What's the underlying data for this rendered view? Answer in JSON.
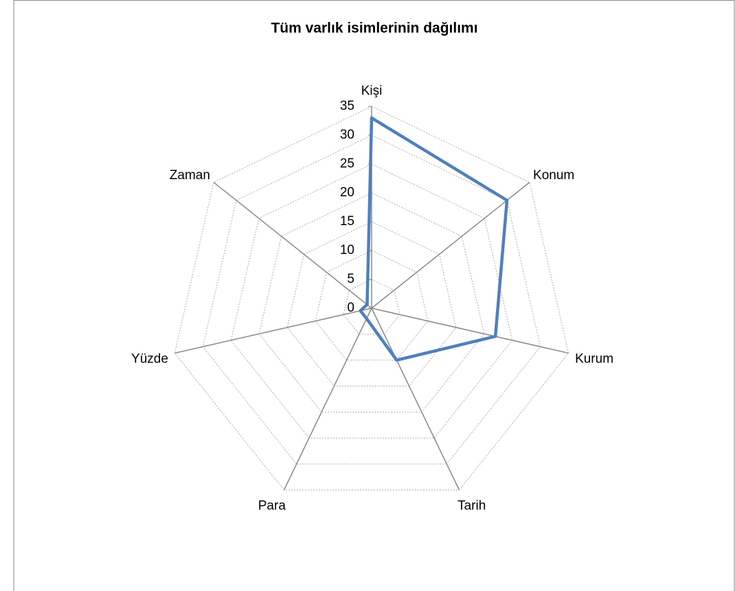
{
  "chart_data": {
    "type": "radar",
    "title": "Tüm varlık isimlerinin dağılımı",
    "categories": [
      "Kişi",
      "Konum",
      "Kurum",
      "Tarih",
      "Para",
      "Yüzde",
      "Zaman"
    ],
    "values": [
      33,
      30,
      22,
      10,
      2,
      2,
      1
    ],
    "color": "#4f7fbd",
    "ylim": [
      0,
      35
    ],
    "yticks": [
      0,
      5,
      10,
      15,
      20,
      25,
      30,
      35
    ],
    "grid": true
  }
}
